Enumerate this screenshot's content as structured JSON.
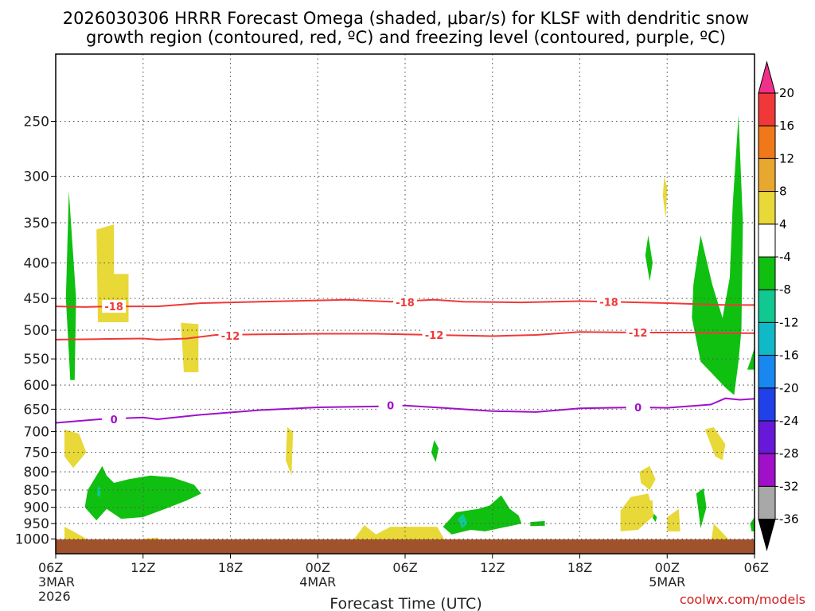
{
  "chart_data": {
    "type": "contour",
    "title_line1": "2026030306 HRRR Forecast Omega (shaded, μbar/s) for KLSF with dendritic snow",
    "title_line2": "growth region (contoured, red, ºC) and freezing level (contoured, purple, ºC)",
    "xlabel": "Forecast Time (UTC)",
    "credit": "coolwx.com/models",
    "x_range_hours": [
      0,
      48
    ],
    "y_range_hpa": [
      1050,
      200
    ],
    "y_ticks": [
      250,
      300,
      350,
      400,
      450,
      500,
      550,
      600,
      650,
      700,
      750,
      800,
      850,
      900,
      950,
      1000
    ],
    "x_ticks": [
      {
        "h": 0,
        "label": "06Z",
        "sub1": "3MAR",
        "sub2": "2026"
      },
      {
        "h": 6,
        "label": "12Z",
        "sub1": "",
        "sub2": ""
      },
      {
        "h": 12,
        "label": "18Z",
        "sub1": "",
        "sub2": ""
      },
      {
        "h": 18,
        "label": "00Z",
        "sub1": "4MAR",
        "sub2": ""
      },
      {
        "h": 24,
        "label": "06Z",
        "sub1": "",
        "sub2": ""
      },
      {
        "h": 30,
        "label": "12Z",
        "sub1": "",
        "sub2": ""
      },
      {
        "h": 36,
        "label": "18Z",
        "sub1": "",
        "sub2": ""
      },
      {
        "h": 42,
        "label": "00Z",
        "sub1": "5MAR",
        "sub2": ""
      },
      {
        "h": 48,
        "label": "06Z",
        "sub1": "",
        "sub2": ""
      }
    ],
    "colorbar": {
      "labels": [
        "20",
        "16",
        "12",
        "8",
        "4",
        "-4",
        "-8",
        "-12",
        "-16",
        "-20",
        "-24",
        "-28",
        "-32",
        "-36"
      ],
      "colors": [
        "#f0308a",
        "#f03838",
        "#f07818",
        "#e8a830",
        "#e8d838",
        "#ffffff",
        "#10c010",
        "#10c890",
        "#10b8c8",
        "#1888f0",
        "#2040e8",
        "#6818d8",
        "#a010c8",
        "#a8a8a8",
        "#000000"
      ]
    },
    "omega_colors": {
      "pos4": "#e8d838",
      "neg4": "#10c010",
      "neg8": "#10c890"
    },
    "ground_color": "#a0522d",
    "contours": [
      {
        "name": "-18C",
        "label": "-18",
        "color": "#f03838",
        "points": [
          [
            0,
            462
          ],
          [
            2,
            463
          ],
          [
            4,
            462
          ],
          [
            7,
            462
          ],
          [
            10,
            457
          ],
          [
            14,
            455
          ],
          [
            18,
            453
          ],
          [
            20,
            452
          ],
          [
            23,
            455
          ],
          [
            26,
            452
          ],
          [
            28,
            455
          ],
          [
            32,
            456
          ],
          [
            36,
            454
          ],
          [
            38,
            455
          ],
          [
            42,
            457
          ],
          [
            46,
            460
          ],
          [
            48,
            460
          ]
        ],
        "label_positions": [
          [
            4,
            462
          ],
          [
            24,
            456
          ],
          [
            38,
            455
          ]
        ]
      },
      {
        "name": "-12C",
        "label": "-12",
        "color": "#f03838",
        "points": [
          [
            0,
            516
          ],
          [
            3,
            515
          ],
          [
            6,
            514
          ],
          [
            7,
            516
          ],
          [
            9,
            514
          ],
          [
            11,
            508
          ],
          [
            14,
            507
          ],
          [
            18,
            506
          ],
          [
            22,
            506
          ],
          [
            26,
            508
          ],
          [
            30,
            510
          ],
          [
            33,
            508
          ],
          [
            36,
            503
          ],
          [
            40,
            504
          ],
          [
            44,
            504
          ],
          [
            46,
            505
          ],
          [
            48,
            505
          ]
        ],
        "label_positions": [
          [
            12,
            509
          ],
          [
            26,
            508
          ],
          [
            40,
            504
          ]
        ]
      },
      {
        "name": "0C",
        "label": "0",
        "color": "#a010c8",
        "points": [
          [
            0,
            680
          ],
          [
            3,
            672
          ],
          [
            6,
            668
          ],
          [
            7,
            672
          ],
          [
            10,
            662
          ],
          [
            14,
            652
          ],
          [
            18,
            646
          ],
          [
            22,
            644
          ],
          [
            24,
            642
          ],
          [
            26,
            646
          ],
          [
            30,
            654
          ],
          [
            33,
            656
          ],
          [
            36,
            648
          ],
          [
            40,
            646
          ],
          [
            42,
            647
          ],
          [
            45,
            640
          ],
          [
            46,
            627
          ],
          [
            47,
            630
          ],
          [
            48,
            628
          ]
        ],
        "label_positions": [
          [
            4,
            672
          ],
          [
            23,
            642
          ],
          [
            40,
            646
          ]
        ]
      }
    ],
    "omega_regions": [
      {
        "class": "neg4",
        "points": [
          [
            1.0,
            590
          ],
          [
            0.7,
            450
          ],
          [
            0.9,
            315
          ],
          [
            1.4,
            450
          ],
          [
            1.3,
            590
          ]
        ]
      },
      {
        "class": "pos4",
        "points": [
          [
            2.8,
            358
          ],
          [
            4.0,
            352
          ],
          [
            4.0,
            415
          ],
          [
            5.0,
            415
          ],
          [
            5.0,
            487
          ],
          [
            2.9,
            487
          ]
        ]
      },
      {
        "class": "pos4",
        "points": [
          [
            8.6,
            488
          ],
          [
            9.8,
            490
          ],
          [
            9.8,
            575
          ],
          [
            8.8,
            575
          ]
        ]
      },
      {
        "class": "pos4",
        "points": [
          [
            0.6,
            695
          ],
          [
            1.6,
            705
          ],
          [
            2.1,
            750
          ],
          [
            1.2,
            790
          ],
          [
            0.6,
            760
          ]
        ]
      },
      {
        "class": "pos4",
        "points": [
          [
            15.9,
            690
          ],
          [
            16.3,
            700
          ],
          [
            16.2,
            810
          ],
          [
            15.8,
            770
          ]
        ]
      },
      {
        "class": "neg4",
        "points": [
          [
            26.0,
            720
          ],
          [
            26.3,
            740
          ],
          [
            26.1,
            775
          ],
          [
            25.8,
            750
          ]
        ]
      },
      {
        "class": "neg4",
        "points": [
          [
            2.0,
            900
          ],
          [
            2.2,
            850
          ],
          [
            3.2,
            785
          ],
          [
            3.5,
            810
          ],
          [
            4.0,
            830
          ],
          [
            5.0,
            820
          ],
          [
            6.5,
            810
          ],
          [
            8,
            815
          ],
          [
            9.5,
            835
          ],
          [
            10.0,
            860
          ],
          [
            9.0,
            880
          ],
          [
            7.5,
            905
          ],
          [
            6.0,
            930
          ],
          [
            4.5,
            935
          ],
          [
            3.5,
            905
          ],
          [
            2.8,
            940
          ]
        ]
      },
      {
        "class": "neg8",
        "points": [
          [
            2.9,
            840
          ],
          [
            3.1,
            845
          ],
          [
            3.05,
            870
          ],
          [
            2.85,
            865
          ]
        ]
      },
      {
        "class": "pos4",
        "points": [
          [
            0.6,
            1050
          ],
          [
            0.6,
            960
          ],
          [
            1.2,
            975
          ],
          [
            2.5,
            1010
          ],
          [
            2.5,
            1050
          ]
        ]
      },
      {
        "class": "pos4",
        "points": [
          [
            5.8,
            1050
          ],
          [
            5.9,
            1000
          ],
          [
            7,
            995
          ],
          [
            7.5,
            1030
          ],
          [
            7.5,
            1050
          ]
        ]
      },
      {
        "class": "pos4",
        "points": [
          [
            20,
            1050
          ],
          [
            20.5,
            1000
          ],
          [
            21.2,
            955
          ],
          [
            22,
            985
          ],
          [
            23,
            960
          ],
          [
            26.2,
            960
          ],
          [
            26.8,
            1010
          ],
          [
            26.8,
            1050
          ]
        ]
      },
      {
        "class": "neg4",
        "points": [
          [
            26.6,
            960
          ],
          [
            27.5,
            915
          ],
          [
            29,
            905
          ],
          [
            29.8,
            895
          ],
          [
            30.6,
            865
          ],
          [
            31.2,
            905
          ],
          [
            31.8,
            925
          ],
          [
            32.0,
            950
          ],
          [
            31.0,
            960
          ],
          [
            29.5,
            975
          ],
          [
            28.5,
            970
          ],
          [
            27.2,
            985
          ]
        ]
      },
      {
        "class": "neg8",
        "points": [
          [
            27.6,
            935
          ],
          [
            28.0,
            920
          ],
          [
            28.3,
            950
          ],
          [
            27.9,
            965
          ]
        ]
      },
      {
        "class": "neg4",
        "points": [
          [
            32.6,
            945
          ],
          [
            33.6,
            942
          ],
          [
            33.6,
            957
          ],
          [
            32.6,
            958
          ]
        ]
      },
      {
        "class": "pos4",
        "points": [
          [
            41.8,
            300
          ],
          [
            42.0,
            312
          ],
          [
            41.9,
            345
          ],
          [
            41.7,
            320
          ]
        ]
      },
      {
        "class": "neg4",
        "points": [
          [
            40.7,
            365
          ],
          [
            41.0,
            400
          ],
          [
            40.8,
            425
          ],
          [
            40.5,
            390
          ]
        ]
      },
      {
        "class": "neg4",
        "points": [
          [
            43.7,
            480
          ],
          [
            43.8,
            430
          ],
          [
            44.3,
            365
          ],
          [
            45.1,
            430
          ],
          [
            45.8,
            480
          ],
          [
            46.3,
            420
          ],
          [
            46.5,
            330
          ],
          [
            46.9,
            245
          ],
          [
            47.2,
            350
          ],
          [
            47.1,
            500
          ],
          [
            46.9,
            555
          ],
          [
            46.6,
            620
          ],
          [
            46.0,
            605
          ],
          [
            45.0,
            575
          ],
          [
            44.3,
            555
          ]
        ]
      },
      {
        "class": "pos4",
        "points": [
          [
            44.6,
            695
          ],
          [
            45.2,
            690
          ],
          [
            46.0,
            730
          ],
          [
            45.8,
            770
          ],
          [
            45.3,
            760
          ]
        ]
      },
      {
        "class": "pos4",
        "points": [
          [
            40.1,
            800
          ],
          [
            40.8,
            785
          ],
          [
            41.2,
            820
          ],
          [
            40.8,
            850
          ],
          [
            40.2,
            830
          ]
        ]
      },
      {
        "class": "pos4",
        "points": [
          [
            40.0,
            880
          ],
          [
            41.0,
            880
          ],
          [
            41.0,
            915
          ],
          [
            40.0,
            920
          ]
        ]
      },
      {
        "class": "pos4",
        "points": [
          [
            38.8,
            910
          ],
          [
            39.5,
            870
          ],
          [
            40.7,
            860
          ],
          [
            41.1,
            925
          ],
          [
            40.0,
            970
          ],
          [
            38.8,
            975
          ]
        ]
      },
      {
        "class": "neg4",
        "points": [
          [
            41.1,
            920
          ],
          [
            41.3,
            930
          ],
          [
            41.2,
            945
          ],
          [
            41.0,
            932
          ]
        ]
      },
      {
        "class": "pos4",
        "points": [
          [
            42.0,
            930
          ],
          [
            42.8,
            905
          ],
          [
            42.9,
            975
          ],
          [
            42.0,
            975
          ]
        ]
      },
      {
        "class": "neg4",
        "points": [
          [
            44.0,
            860
          ],
          [
            44.5,
            845
          ],
          [
            44.7,
            900
          ],
          [
            44.3,
            965
          ]
        ]
      },
      {
        "class": "pos4",
        "points": [
          [
            44.9,
            1050
          ],
          [
            45.2,
            950
          ],
          [
            46.2,
            1000
          ],
          [
            46.5,
            1050
          ]
        ]
      },
      {
        "class": "neg4",
        "points": [
          [
            47.5,
            570
          ],
          [
            48,
            570
          ],
          [
            48,
            530
          ],
          [
            47.7,
            555
          ]
        ]
      },
      {
        "class": "neg4",
        "points": [
          [
            47.7,
            950
          ],
          [
            48,
            930
          ],
          [
            48,
            975
          ],
          [
            47.8,
            975
          ]
        ]
      }
    ]
  }
}
